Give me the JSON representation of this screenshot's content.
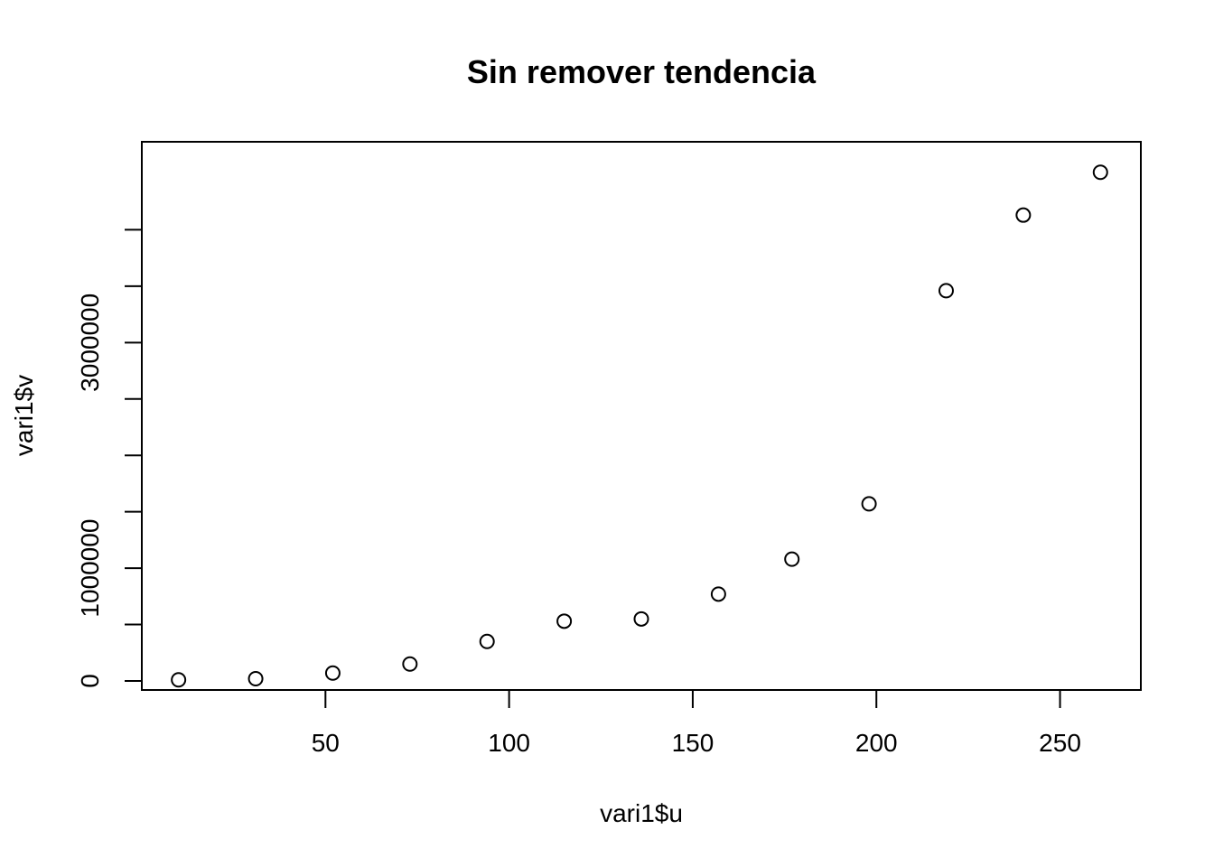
{
  "chart_data": {
    "type": "scatter",
    "title": "Sin remover tendencia",
    "xlabel": "vari1$u",
    "ylabel": "vari1$v",
    "xlim": [
      0,
      272
    ],
    "ylim": [
      -80000,
      4780000
    ],
    "x_ticks": [
      50,
      100,
      150,
      200,
      250
    ],
    "y_ticks": [
      0,
      500000,
      1000000,
      1500000,
      2000000,
      2500000,
      3000000,
      3500000,
      4000000
    ],
    "x_tick_labels": [
      "50",
      "100",
      "150",
      "200",
      "250"
    ],
    "y_tick_labels": [
      "0",
      "",
      "1000000",
      "",
      "",
      "",
      "3000000",
      "",
      ""
    ],
    "grid": false,
    "x": [
      10,
      31,
      52,
      73,
      94,
      115,
      136,
      157,
      177,
      198,
      219,
      240,
      261
    ],
    "y": [
      10000,
      20000,
      70000,
      150000,
      350000,
      530000,
      550000,
      770000,
      1080000,
      1570000,
      3460000,
      4130000,
      4510000
    ]
  }
}
